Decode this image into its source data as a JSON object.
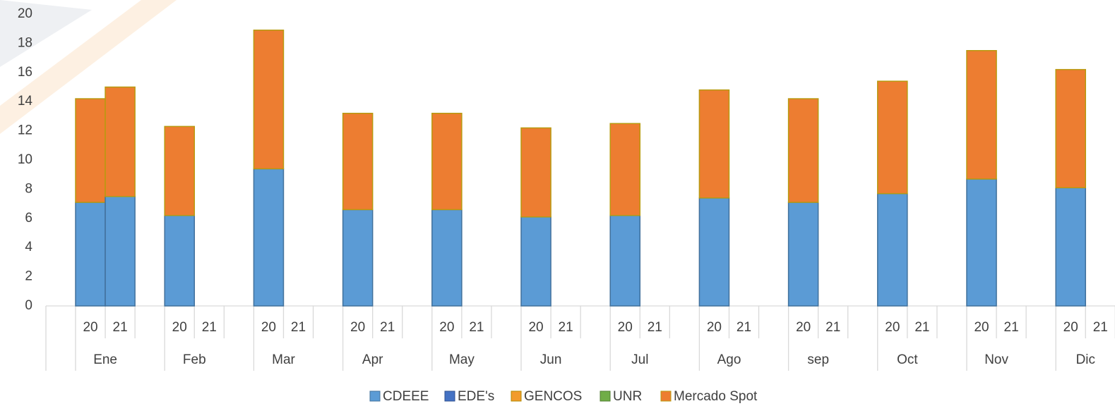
{
  "chart_data": {
    "type": "stacked_bar",
    "categories": [
      "20",
      "21",
      "20",
      "21",
      "20",
      "21",
      "20",
      "21",
      "20",
      "21",
      "20",
      "21",
      "20",
      "21",
      "20",
      "21",
      "20",
      "21",
      "20",
      "21",
      "20",
      "21",
      "20",
      "21"
    ],
    "groups": [
      "Ene",
      "Feb",
      "Mar",
      "Apr",
      "May",
      "Jun",
      "Jul",
      "Ago",
      "sep",
      "Oct",
      "Nov",
      "Dic"
    ],
    "series": [
      {
        "name": "CDEEE",
        "color": "#5b9bd5",
        "values": [
          7.1,
          7.5,
          6.2,
          null,
          9.4,
          null,
          6.6,
          null,
          6.6,
          null,
          6.1,
          null,
          6.2,
          null,
          7.4,
          null,
          7.1,
          null,
          7.7,
          null,
          8.7,
          null,
          8.1,
          null
        ]
      },
      {
        "name": "EDE's",
        "color": "#4472c4",
        "values": [
          0,
          0,
          0,
          null,
          0,
          null,
          0,
          null,
          0,
          null,
          0,
          null,
          0,
          null,
          0,
          null,
          0,
          null,
          0,
          null,
          0,
          null,
          0,
          null
        ]
      },
      {
        "name": "GENCOS",
        "color": "#f29b2b",
        "values": [
          0,
          0,
          0,
          null,
          0,
          null,
          0,
          null,
          0,
          null,
          0,
          null,
          0,
          null,
          0,
          null,
          0,
          null,
          0,
          null,
          0,
          null,
          0,
          null
        ]
      },
      {
        "name": "UNR",
        "color": "#70ad47",
        "values": [
          0,
          0,
          0,
          null,
          0,
          null,
          0,
          null,
          0,
          null,
          0,
          null,
          0,
          null,
          0,
          null,
          0,
          null,
          0,
          null,
          0,
          null,
          0,
          null
        ]
      },
      {
        "name": "Mercado Spot",
        "color": "#ed7d31",
        "values": [
          7.1,
          7.5,
          6.1,
          null,
          9.5,
          null,
          6.6,
          null,
          6.6,
          null,
          6.1,
          null,
          6.3,
          null,
          7.4,
          null,
          7.1,
          null,
          7.7,
          null,
          8.8,
          null,
          8.1,
          null
        ]
      }
    ],
    "ylim": [
      0,
      20
    ],
    "yticks": [
      0,
      2,
      4,
      6,
      8,
      10,
      12,
      14,
      16,
      18,
      20
    ],
    "grid": false,
    "legend": "bottom"
  }
}
